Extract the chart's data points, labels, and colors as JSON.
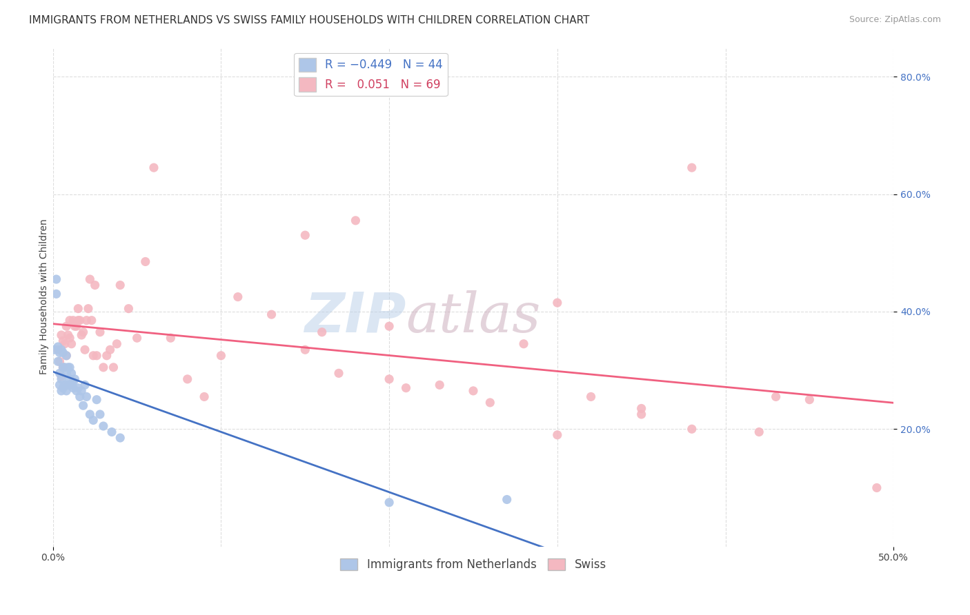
{
  "title": "IMMIGRANTS FROM NETHERLANDS VS SWISS FAMILY HOUSEHOLDS WITH CHILDREN CORRELATION CHART",
  "source": "Source: ZipAtlas.com",
  "ylabel": "Family Households with Children",
  "xlim": [
    0.0,
    0.5
  ],
  "ylim": [
    0.0,
    0.85
  ],
  "y_ticks": [
    0.2,
    0.4,
    0.6,
    0.8
  ],
  "netherlands_color": "#aec6e8",
  "swiss_color": "#f4b8c1",
  "netherlands_line_color": "#4472c4",
  "swiss_line_color": "#f06080",
  "netherlands_x": [
    0.001,
    0.002,
    0.002,
    0.003,
    0.003,
    0.004,
    0.004,
    0.004,
    0.005,
    0.005,
    0.005,
    0.006,
    0.006,
    0.006,
    0.007,
    0.007,
    0.008,
    0.008,
    0.008,
    0.009,
    0.009,
    0.01,
    0.01,
    0.011,
    0.011,
    0.012,
    0.012,
    0.013,
    0.014,
    0.015,
    0.016,
    0.017,
    0.018,
    0.019,
    0.02,
    0.022,
    0.024,
    0.026,
    0.028,
    0.03,
    0.035,
    0.04,
    0.2,
    0.27
  ],
  "netherlands_y": [
    0.335,
    0.455,
    0.43,
    0.315,
    0.34,
    0.275,
    0.295,
    0.33,
    0.265,
    0.285,
    0.335,
    0.27,
    0.305,
    0.33,
    0.275,
    0.305,
    0.265,
    0.295,
    0.325,
    0.275,
    0.305,
    0.285,
    0.305,
    0.275,
    0.295,
    0.27,
    0.28,
    0.285,
    0.265,
    0.27,
    0.255,
    0.265,
    0.24,
    0.275,
    0.255,
    0.225,
    0.215,
    0.25,
    0.225,
    0.205,
    0.195,
    0.185,
    0.075,
    0.08
  ],
  "swiss_x": [
    0.003,
    0.004,
    0.005,
    0.005,
    0.006,
    0.006,
    0.007,
    0.008,
    0.008,
    0.009,
    0.01,
    0.01,
    0.011,
    0.012,
    0.013,
    0.014,
    0.015,
    0.015,
    0.016,
    0.017,
    0.018,
    0.019,
    0.02,
    0.021,
    0.022,
    0.023,
    0.024,
    0.025,
    0.026,
    0.028,
    0.03,
    0.032,
    0.034,
    0.036,
    0.038,
    0.04,
    0.045,
    0.05,
    0.055,
    0.06,
    0.07,
    0.08,
    0.09,
    0.1,
    0.11,
    0.13,
    0.15,
    0.17,
    0.2,
    0.23,
    0.16,
    0.21,
    0.25,
    0.28,
    0.32,
    0.35,
    0.38,
    0.42,
    0.45,
    0.49,
    0.3,
    0.35,
    0.18,
    0.26,
    0.38,
    0.43,
    0.3,
    0.15,
    0.2
  ],
  "swiss_y": [
    0.335,
    0.315,
    0.29,
    0.36,
    0.305,
    0.35,
    0.345,
    0.375,
    0.325,
    0.36,
    0.355,
    0.385,
    0.345,
    0.385,
    0.375,
    0.375,
    0.385,
    0.405,
    0.385,
    0.36,
    0.365,
    0.335,
    0.385,
    0.405,
    0.455,
    0.385,
    0.325,
    0.445,
    0.325,
    0.365,
    0.305,
    0.325,
    0.335,
    0.305,
    0.345,
    0.445,
    0.405,
    0.355,
    0.485,
    0.645,
    0.355,
    0.285,
    0.255,
    0.325,
    0.425,
    0.395,
    0.335,
    0.295,
    0.285,
    0.275,
    0.365,
    0.27,
    0.265,
    0.345,
    0.255,
    0.235,
    0.2,
    0.195,
    0.25,
    0.1,
    0.415,
    0.225,
    0.555,
    0.245,
    0.645,
    0.255,
    0.19,
    0.53,
    0.375
  ],
  "watermark_zip": "ZIP",
  "watermark_atlas": "atlas",
  "background_color": "#ffffff",
  "grid_color": "#dddddd",
  "title_fontsize": 11,
  "axis_label_fontsize": 10,
  "tick_fontsize": 10,
  "legend_fontsize": 12
}
